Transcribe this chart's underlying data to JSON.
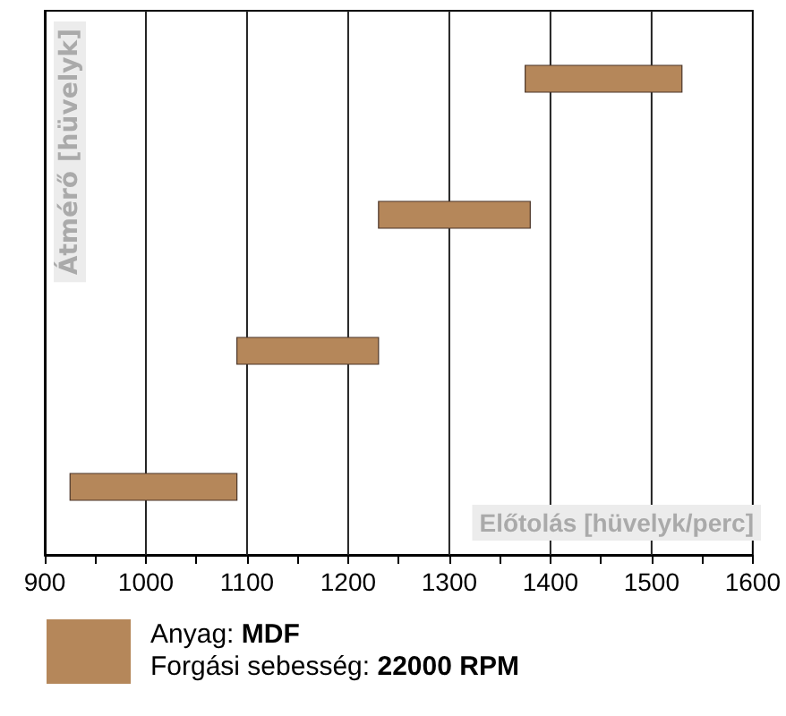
{
  "chart_data": {
    "type": "bar",
    "orientation": "horizontal",
    "xlabel": "Előtolás [hüvelyk/perc]",
    "ylabel": "Átmérő [hüvelyk]",
    "categories": [
      null,
      null,
      null,
      null
    ],
    "base": [
      1375,
      1230,
      1090,
      925
    ],
    "values": [
      155,
      150,
      140,
      165
    ],
    "color": "#b5875a",
    "xlim": [
      900,
      1600
    ],
    "xticks": [
      900,
      {
        "value": 950,
        "label": null
      },
      1000,
      {
        "value": 1050,
        "label": null
      },
      1100,
      {
        "value": 1150,
        "label": null
      },
      1200,
      {
        "value": 1250,
        "label": null
      },
      1300,
      {
        "value": 1350,
        "label": null
      },
      1400,
      {
        "value": 1450,
        "label": null
      },
      1500,
      {
        "value": 1550,
        "label": null
      },
      1600
    ],
    "grid": "x",
    "annotations": [
      "Anyag: MDF",
      "Forgási sebesség: 22000 RPM"
    ]
  }
}
